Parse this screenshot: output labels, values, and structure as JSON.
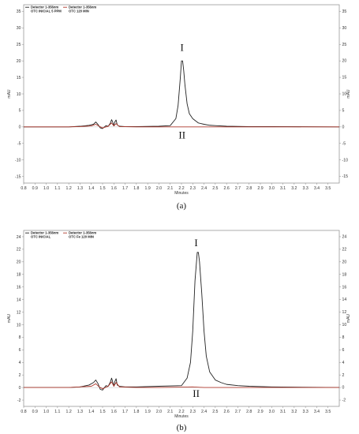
{
  "chart_data": [
    {
      "type": "line",
      "caption": "(a)",
      "xlabel": "Minutes",
      "ylabel": "mAU",
      "ylabel_right": "mAU",
      "xlim": [
        0.8,
        3.6
      ],
      "ylim": [
        -17,
        37
      ],
      "x_ticks": [
        "0.8",
        "0.9",
        "1.0",
        "1.1",
        "1.2",
        "1.3",
        "1.4",
        "1.5",
        "1.6",
        "1.7",
        "1.8",
        "1.9",
        "2.0",
        "2.1",
        "2.2",
        "2.3",
        "2.4",
        "2.5",
        "2.6",
        "2.7",
        "2.8",
        "2.9",
        "3.0",
        "3.1",
        "3.2",
        "3.3",
        "3.4",
        "3.5"
      ],
      "y_ticks": [
        "-15",
        "-10",
        "-5",
        "0",
        "5",
        "10",
        "15",
        "20",
        "25",
        "30",
        "35"
      ],
      "annotations": [
        {
          "text": "I",
          "x": 2.205,
          "y": 23
        },
        {
          "text": "II",
          "x": 2.205,
          "y": -3.5
        }
      ],
      "legend": [
        {
          "detector": "Detector 1-356nm",
          "name": "OTC INICIAL 5 PPM",
          "color": "#222222"
        },
        {
          "detector": "Detector 1-356nm",
          "name": "OTC 120 MIN",
          "color": "#b03a2e"
        }
      ],
      "series": [
        {
          "name": "OTC INICIAL 5 PPM",
          "color": "#222222",
          "x": [
            0.8,
            1.0,
            1.2,
            1.3,
            1.38,
            1.42,
            1.44,
            1.46,
            1.48,
            1.5,
            1.53,
            1.55,
            1.57,
            1.58,
            1.59,
            1.6,
            1.61,
            1.62,
            1.63,
            1.65,
            1.7,
            1.8,
            2.0,
            2.1,
            2.15,
            2.17,
            2.19,
            2.2,
            2.21,
            2.22,
            2.23,
            2.25,
            2.27,
            2.3,
            2.35,
            2.4,
            2.45,
            2.5,
            2.6,
            2.8,
            3.0,
            3.6
          ],
          "y": [
            0,
            0,
            0,
            0.2,
            0.5,
            0.8,
            1.5,
            0.7,
            -0.3,
            -0.5,
            0.4,
            0.2,
            1.2,
            2.2,
            1.5,
            0.3,
            1.6,
            2.1,
            0.6,
            0.2,
            0.1,
            0.1,
            0.2,
            0.4,
            2.5,
            6.5,
            15,
            20,
            20,
            17,
            13,
            7,
            4,
            2.5,
            1.2,
            0.8,
            0.5,
            0.4,
            0.2,
            0.1,
            0.1,
            0
          ]
        },
        {
          "name": "OTC 120 MIN",
          "color": "#b03a2e",
          "x": [
            0.8,
            1.0,
            1.2,
            1.3,
            1.4,
            1.44,
            1.47,
            1.5,
            1.55,
            1.58,
            1.6,
            1.62,
            1.65,
            1.8,
            2.0,
            2.2,
            2.4,
            3.0,
            3.6
          ],
          "y": [
            0,
            0,
            0,
            0.1,
            0.3,
            0.8,
            0.2,
            -0.3,
            0.2,
            1.2,
            0.3,
            1.0,
            0.1,
            0,
            0,
            0,
            0,
            0,
            0
          ]
        }
      ]
    },
    {
      "type": "line",
      "caption": "(b)",
      "xlabel": "Minutes",
      "ylabel": "mAU",
      "ylabel_right": "mAU",
      "xlim": [
        0.8,
        3.6
      ],
      "ylim": [
        -3,
        25
      ],
      "x_ticks": [
        "0.8",
        "0.9",
        "1.0",
        "1.1",
        "1.2",
        "1.3",
        "1.4",
        "1.5",
        "1.6",
        "1.7",
        "1.8",
        "1.9",
        "2.0",
        "2.1",
        "2.2",
        "2.3",
        "2.4",
        "2.5",
        "2.6",
        "2.7",
        "2.8",
        "2.9",
        "3.0",
        "3.1",
        "3.2",
        "3.3",
        "3.4",
        "3.5"
      ],
      "y_ticks": [
        "-2",
        "0",
        "2",
        "4",
        "6",
        "8",
        "10",
        "12",
        "14",
        "16",
        "18",
        "20",
        "22",
        "24"
      ],
      "annotations": [
        {
          "text": "I",
          "x": 2.33,
          "y": 22.5
        },
        {
          "text": "II",
          "x": 2.33,
          "y": -1.5
        }
      ],
      "legend": [
        {
          "detector": "Detector 1-356nm",
          "name": "OTC INICIAL",
          "color": "#222222"
        },
        {
          "detector": "Detector 1-356nm",
          "name": "OTC Fe 120 MIN",
          "color": "#b03a2e"
        }
      ],
      "series": [
        {
          "name": "OTC INICIAL",
          "color": "#222222",
          "x": [
            0.8,
            1.0,
            1.2,
            1.3,
            1.38,
            1.42,
            1.44,
            1.46,
            1.48,
            1.5,
            1.53,
            1.55,
            1.57,
            1.58,
            1.59,
            1.6,
            1.61,
            1.62,
            1.63,
            1.65,
            1.7,
            1.8,
            2.0,
            2.2,
            2.25,
            2.28,
            2.3,
            2.32,
            2.34,
            2.35,
            2.36,
            2.38,
            2.4,
            2.42,
            2.45,
            2.5,
            2.55,
            2.6,
            2.7,
            2.8,
            3.0,
            3.6
          ],
          "y": [
            0,
            0,
            0,
            0.1,
            0.4,
            0.8,
            1.2,
            0.6,
            -0.3,
            -0.4,
            0.3,
            0.2,
            0.9,
            1.5,
            0.9,
            0.2,
            1.0,
            1.4,
            0.4,
            0.2,
            0.1,
            0.1,
            0.2,
            0.3,
            1.5,
            4,
            9,
            17,
            21.5,
            21.5,
            20,
            15,
            9,
            5,
            2.5,
            1.2,
            0.8,
            0.5,
            0.3,
            0.2,
            0.1,
            0
          ]
        },
        {
          "name": "OTC Fe 120 MIN",
          "color": "#b03a2e",
          "x": [
            0.8,
            1.0,
            1.2,
            1.3,
            1.4,
            1.44,
            1.47,
            1.5,
            1.55,
            1.58,
            1.6,
            1.62,
            1.65,
            1.8,
            2.0,
            2.3,
            2.4,
            3.0,
            3.6
          ],
          "y": [
            0,
            0,
            0,
            0.1,
            0.2,
            0.6,
            0.1,
            -0.2,
            0.2,
            0.9,
            0.2,
            0.8,
            0.1,
            0,
            0,
            0.1,
            0,
            0,
            0
          ]
        }
      ]
    }
  ]
}
